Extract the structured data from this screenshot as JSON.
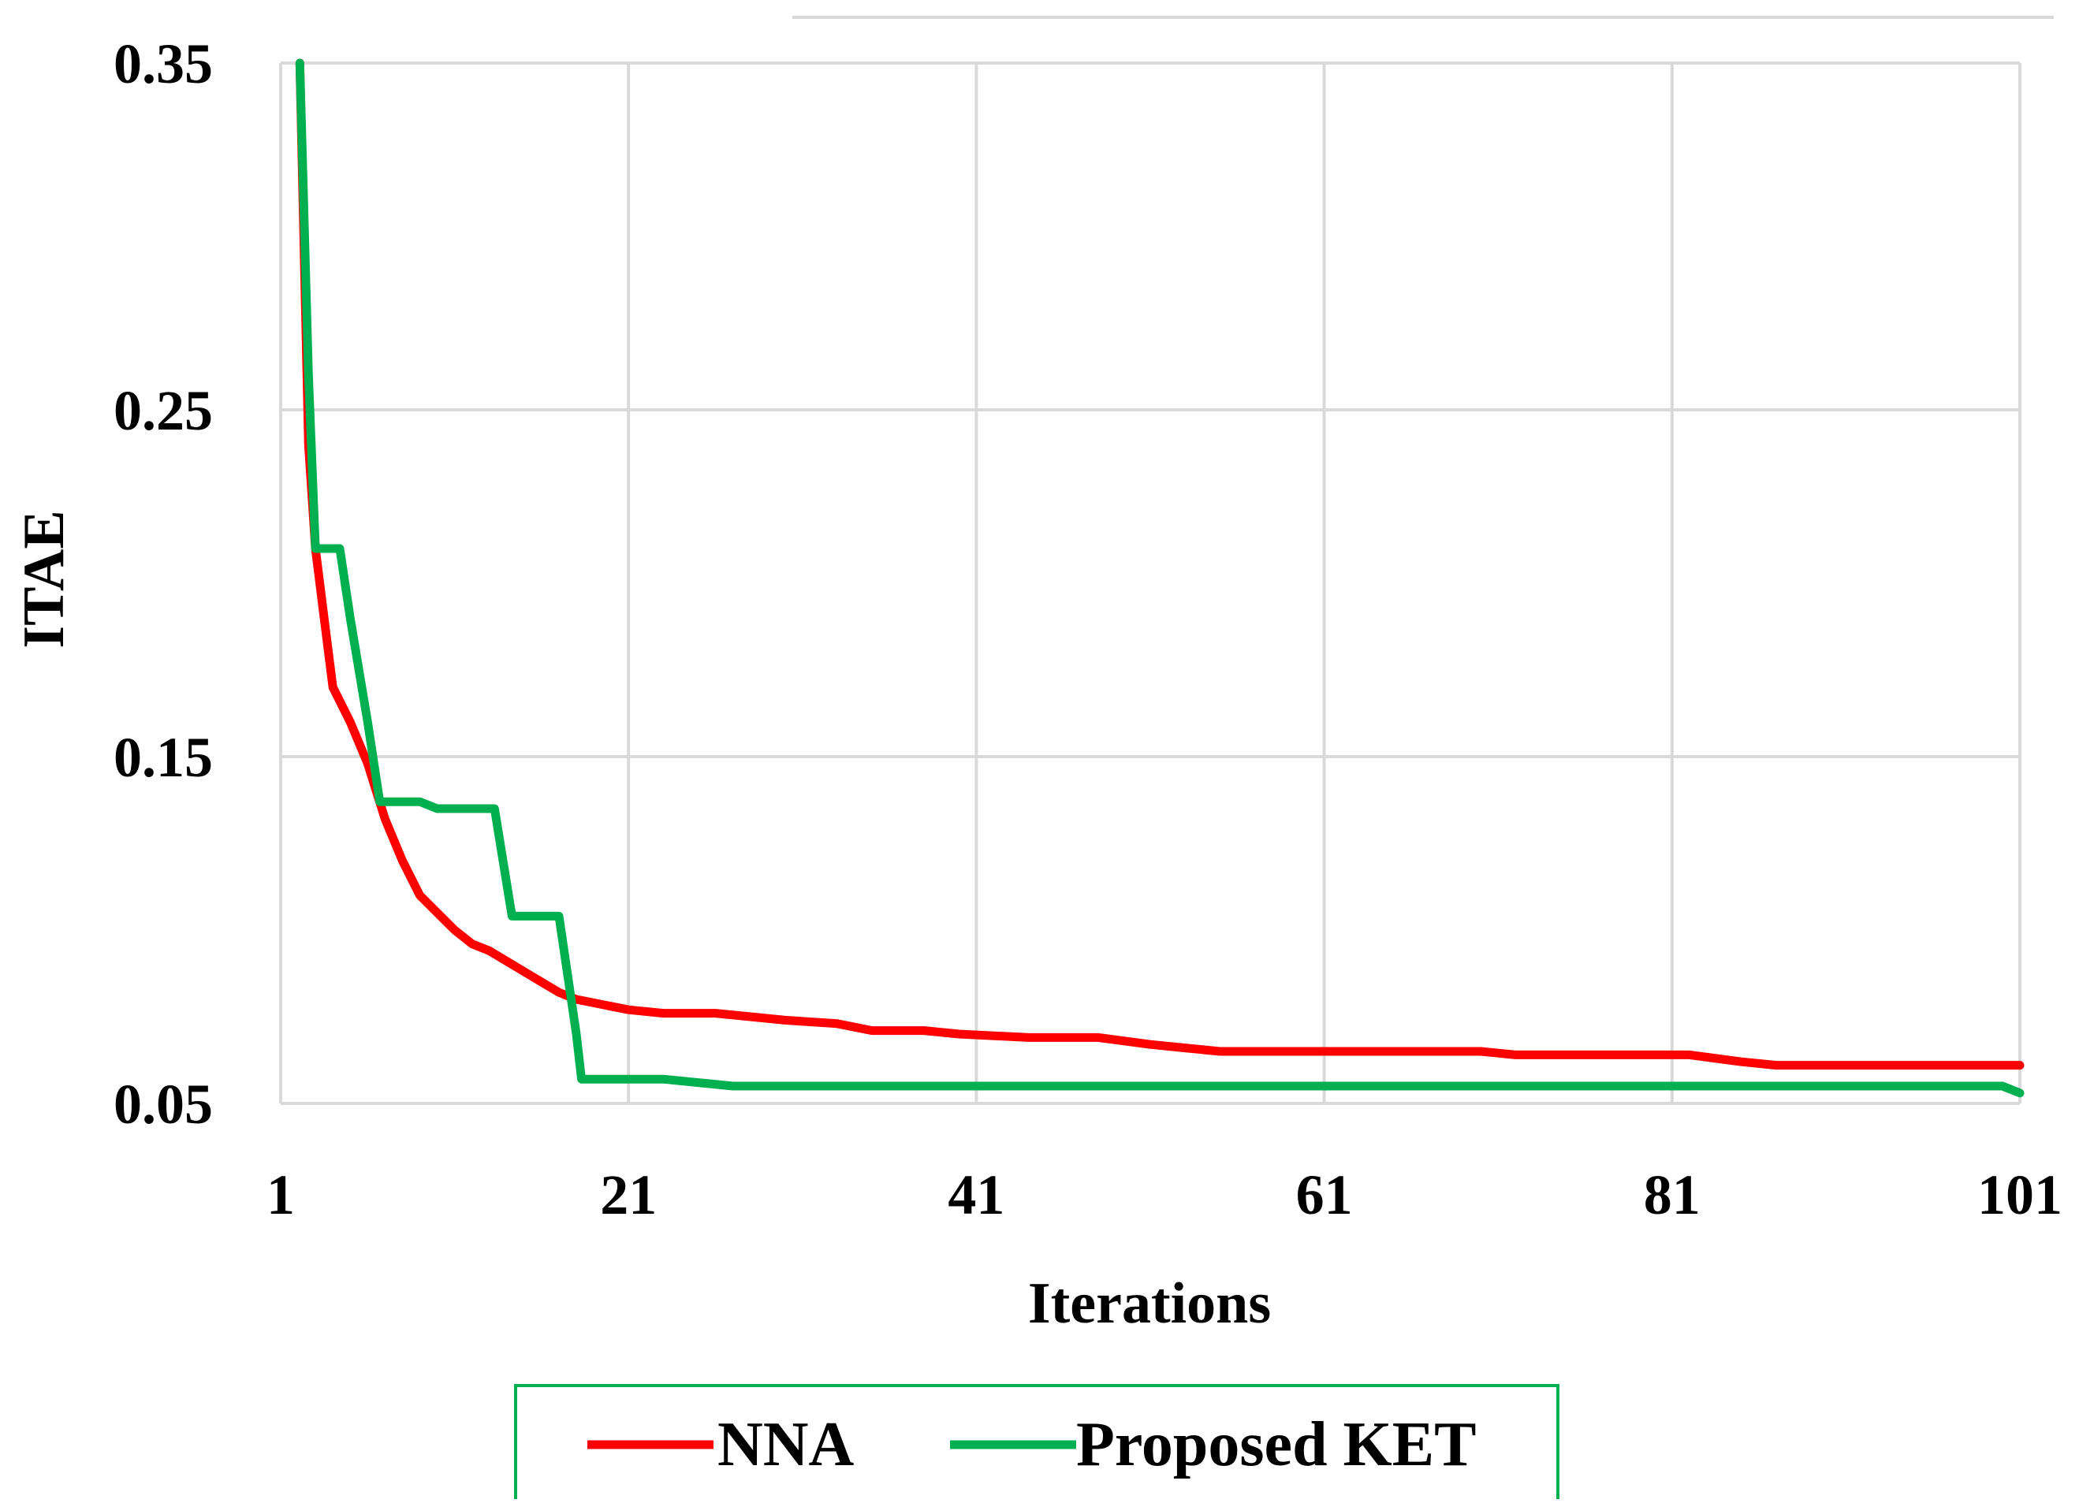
{
  "chart_data": {
    "type": "line",
    "xlabel": "Iterations",
    "ylabel": "ITAE",
    "xlim": [
      1,
      101
    ],
    "ylim": [
      0.05,
      0.35
    ],
    "x_ticks": [
      "1",
      "21",
      "41",
      "61",
      "81",
      "101"
    ],
    "y_ticks": [
      "0.35",
      "0.25",
      "0.15",
      "0.05"
    ],
    "grid": true,
    "legend_position": "bottom",
    "series": [
      {
        "name": "NNA",
        "color": "#ff0000",
        "points": [
          [
            2.1,
            0.35
          ],
          [
            2.6,
            0.24
          ],
          [
            3,
            0.21
          ],
          [
            3.5,
            0.19
          ],
          [
            4,
            0.17
          ],
          [
            5,
            0.16
          ],
          [
            6,
            0.148
          ],
          [
            7,
            0.132
          ],
          [
            8,
            0.12
          ],
          [
            9,
            0.11
          ],
          [
            10,
            0.105
          ],
          [
            11,
            0.1
          ],
          [
            12,
            0.096
          ],
          [
            13,
            0.094
          ],
          [
            14,
            0.091
          ],
          [
            15,
            0.088
          ],
          [
            16,
            0.085
          ],
          [
            17,
            0.082
          ],
          [
            18,
            0.08
          ],
          [
            19,
            0.079
          ],
          [
            20,
            0.078
          ],
          [
            21,
            0.077
          ],
          [
            23,
            0.076
          ],
          [
            26,
            0.076
          ],
          [
            28,
            0.075
          ],
          [
            30,
            0.074
          ],
          [
            33,
            0.073
          ],
          [
            35,
            0.071
          ],
          [
            38,
            0.071
          ],
          [
            40,
            0.07
          ],
          [
            44,
            0.069
          ],
          [
            48,
            0.069
          ],
          [
            51,
            0.067
          ],
          [
            53,
            0.066
          ],
          [
            55,
            0.065
          ],
          [
            60,
            0.065
          ],
          [
            65,
            0.065
          ],
          [
            70,
            0.065
          ],
          [
            72,
            0.064
          ],
          [
            75,
            0.064
          ],
          [
            80,
            0.064
          ],
          [
            82,
            0.064
          ],
          [
            85,
            0.062
          ],
          [
            87,
            0.061
          ],
          [
            90,
            0.061
          ],
          [
            95,
            0.061
          ],
          [
            101,
            0.061
          ]
        ]
      },
      {
        "name": "Proposed KET",
        "color": "#00b050",
        "points": [
          [
            2.1,
            0.35
          ],
          [
            2.6,
            0.26
          ],
          [
            3,
            0.21
          ],
          [
            4.4,
            0.21
          ],
          [
            5,
            0.19
          ],
          [
            6,
            0.16
          ],
          [
            6.7,
            0.137
          ],
          [
            9,
            0.137
          ],
          [
            10,
            0.135
          ],
          [
            13.3,
            0.135
          ],
          [
            14.3,
            0.104
          ],
          [
            17,
            0.104
          ],
          [
            18,
            0.07
          ],
          [
            18.3,
            0.057
          ],
          [
            23,
            0.057
          ],
          [
            25,
            0.056
          ],
          [
            27,
            0.055
          ],
          [
            30,
            0.055
          ],
          [
            50,
            0.055
          ],
          [
            70,
            0.055
          ],
          [
            90,
            0.055
          ],
          [
            100,
            0.055
          ],
          [
            101,
            0.053
          ]
        ]
      }
    ]
  }
}
